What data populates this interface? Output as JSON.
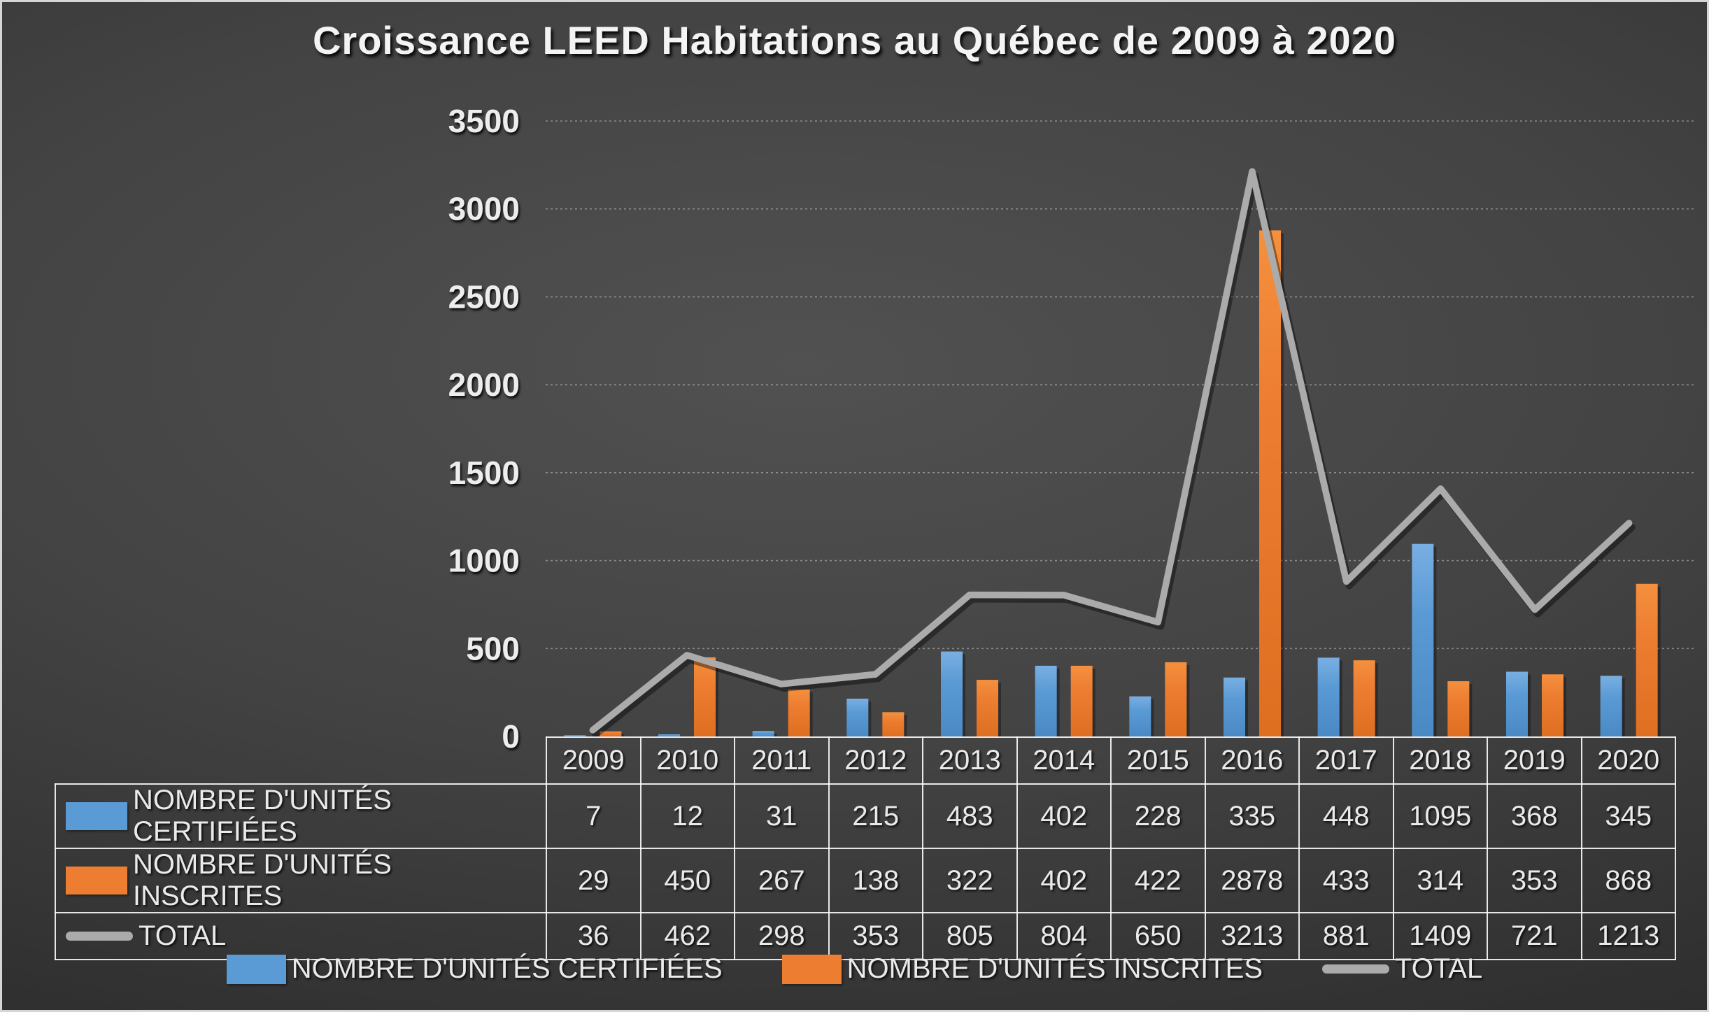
{
  "page": {
    "title": "Croissance LEED Habitations au Québec de 2009 à 2020"
  },
  "chart_data": {
    "type": "bar",
    "combo": "clustered bars + line overlay + data table",
    "title": "Croissance LEED Habitations au Québec de 2009 à 2020",
    "categories": [
      "2009",
      "2010",
      "2011",
      "2012",
      "2013",
      "2014",
      "2015",
      "2016",
      "2017",
      "2018",
      "2019",
      "2020"
    ],
    "series": [
      {
        "id": "certifiees",
        "name": "NOMBRE D'UNITÉS CERTIFIÉES",
        "type": "bar",
        "color": "#5B9BD5",
        "values": [
          7,
          12,
          31,
          215,
          483,
          402,
          228,
          335,
          448,
          1095,
          368,
          345
        ]
      },
      {
        "id": "inscrites",
        "name": "NOMBRE D'UNITÉS INSCRITES",
        "type": "bar",
        "color": "#ED7D31",
        "values": [
          29,
          450,
          267,
          138,
          322,
          402,
          422,
          2878,
          433,
          314,
          353,
          868
        ]
      },
      {
        "id": "total",
        "name": "TOTAL",
        "type": "line",
        "color": "#ABABAB",
        "values": [
          36,
          462,
          298,
          353,
          805,
          804,
          650,
          3213,
          881,
          1409,
          721,
          1213
        ]
      }
    ],
    "xlabel": "",
    "ylabel": "",
    "ylim": [
      0,
      3500
    ],
    "ytick_step": 500,
    "yticks": [
      0,
      500,
      1000,
      1500,
      2000,
      2500,
      3000,
      3500
    ],
    "grid": true,
    "gridline_style": "dashed",
    "legend_position": "bottom",
    "data_table_shown": true,
    "text_color": "#eaeaea",
    "background": "dark gray radial gradient"
  }
}
